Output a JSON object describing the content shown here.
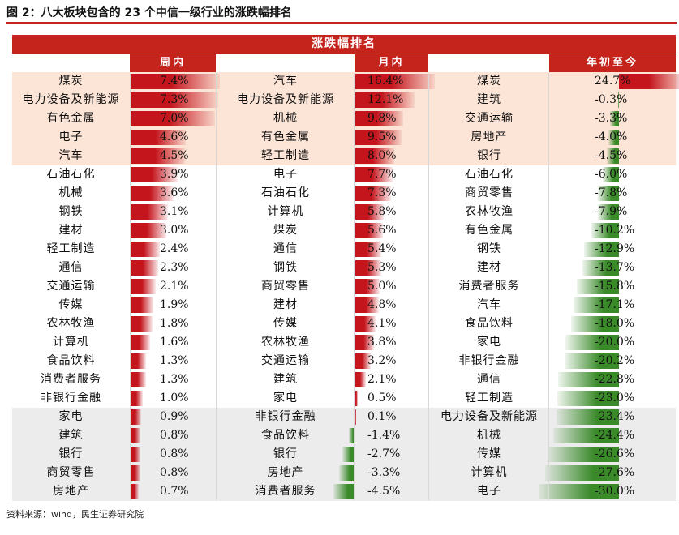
{
  "figure_title": "图 2：八大板块包含的 23 个中信一级行业的涨跌幅排名",
  "banner_title": "涨跌幅排名",
  "columns": {
    "week": "周内",
    "month": "月内",
    "ytd": "年初至今"
  },
  "colors": {
    "header_red": "#c4241c",
    "top_band": "#fce4d6",
    "bottom_band": "#ececec",
    "positive_bar": "#c4141c",
    "negative_bar": "#3a8a2a"
  },
  "band_rows": {
    "top_end": 5,
    "bottom_start": 18
  },
  "rows": [
    {
      "week_name": "煤炭",
      "week_val": "7.4%",
      "week_num": 7.4,
      "month_name": "汽车",
      "month_val": "16.4%",
      "month_num": 16.4,
      "ytd_name": "煤炭",
      "ytd_val": "24.7%",
      "ytd_num": 24.7
    },
    {
      "week_name": "电力设备及新能源",
      "week_val": "7.3%",
      "week_num": 7.3,
      "month_name": "电力设备及新能源",
      "month_val": "12.1%",
      "month_num": 12.1,
      "ytd_name": "建筑",
      "ytd_val": "-0.3%",
      "ytd_num": -0.3
    },
    {
      "week_name": "有色金属",
      "week_val": "7.0%",
      "week_num": 7.0,
      "month_name": "机械",
      "month_val": "9.8%",
      "month_num": 9.8,
      "ytd_name": "交通运输",
      "ytd_val": "-3.3%",
      "ytd_num": -3.3
    },
    {
      "week_name": "电子",
      "week_val": "4.6%",
      "week_num": 4.6,
      "month_name": "有色金属",
      "month_val": "9.5%",
      "month_num": 9.5,
      "ytd_name": "房地产",
      "ytd_val": "-4.0%",
      "ytd_num": -4.0
    },
    {
      "week_name": "汽车",
      "week_val": "4.5%",
      "week_num": 4.5,
      "month_name": "轻工制造",
      "month_val": "8.0%",
      "month_num": 8.0,
      "ytd_name": "银行",
      "ytd_val": "-4.5%",
      "ytd_num": -4.5
    },
    {
      "week_name": "石油石化",
      "week_val": "3.9%",
      "week_num": 3.9,
      "month_name": "电子",
      "month_val": "7.7%",
      "month_num": 7.7,
      "ytd_name": "石油石化",
      "ytd_val": "-6.0%",
      "ytd_num": -6.0
    },
    {
      "week_name": "机械",
      "week_val": "3.6%",
      "week_num": 3.6,
      "month_name": "石油石化",
      "month_val": "7.3%",
      "month_num": 7.3,
      "ytd_name": "商贸零售",
      "ytd_val": "-7.8%",
      "ytd_num": -7.8
    },
    {
      "week_name": "钢铁",
      "week_val": "3.1%",
      "week_num": 3.1,
      "month_name": "计算机",
      "month_val": "5.8%",
      "month_num": 5.8,
      "ytd_name": "农林牧渔",
      "ytd_val": "-7.9%",
      "ytd_num": -7.9
    },
    {
      "week_name": "建材",
      "week_val": "3.0%",
      "week_num": 3.0,
      "month_name": "煤炭",
      "month_val": "5.6%",
      "month_num": 5.6,
      "ytd_name": "有色金属",
      "ytd_val": "-10.2%",
      "ytd_num": -10.2
    },
    {
      "week_name": "轻工制造",
      "week_val": "2.4%",
      "week_num": 2.4,
      "month_name": "通信",
      "month_val": "5.4%",
      "month_num": 5.4,
      "ytd_name": "钢铁",
      "ytd_val": "-12.9%",
      "ytd_num": -12.9
    },
    {
      "week_name": "通信",
      "week_val": "2.3%",
      "week_num": 2.3,
      "month_name": "钢铁",
      "month_val": "5.3%",
      "month_num": 5.3,
      "ytd_name": "建材",
      "ytd_val": "-13.7%",
      "ytd_num": -13.7
    },
    {
      "week_name": "交通运输",
      "week_val": "2.1%",
      "week_num": 2.1,
      "month_name": "商贸零售",
      "month_val": "5.0%",
      "month_num": 5.0,
      "ytd_name": "消费者服务",
      "ytd_val": "-15.8%",
      "ytd_num": -15.8
    },
    {
      "week_name": "传媒",
      "week_val": "1.9%",
      "week_num": 1.9,
      "month_name": "建材",
      "month_val": "4.8%",
      "month_num": 4.8,
      "ytd_name": "汽车",
      "ytd_val": "-17.1%",
      "ytd_num": -17.1
    },
    {
      "week_name": "农林牧渔",
      "week_val": "1.8%",
      "week_num": 1.8,
      "month_name": "传媒",
      "month_val": "4.1%",
      "month_num": 4.1,
      "ytd_name": "食品饮料",
      "ytd_val": "-18.0%",
      "ytd_num": -18.0
    },
    {
      "week_name": "计算机",
      "week_val": "1.6%",
      "week_num": 1.6,
      "month_name": "农林牧渔",
      "month_val": "3.8%",
      "month_num": 3.8,
      "ytd_name": "家电",
      "ytd_val": "-20.0%",
      "ytd_num": -20.0
    },
    {
      "week_name": "食品饮料",
      "week_val": "1.3%",
      "week_num": 1.3,
      "month_name": "交通运输",
      "month_val": "3.2%",
      "month_num": 3.2,
      "ytd_name": "非银行金融",
      "ytd_val": "-20.2%",
      "ytd_num": -20.2
    },
    {
      "week_name": "消费者服务",
      "week_val": "1.3%",
      "week_num": 1.3,
      "month_name": "建筑",
      "month_val": "2.1%",
      "month_num": 2.1,
      "ytd_name": "通信",
      "ytd_val": "-22.8%",
      "ytd_num": -22.8
    },
    {
      "week_name": "非银行金融",
      "week_val": "1.0%",
      "week_num": 1.0,
      "month_name": "家电",
      "month_val": "0.5%",
      "month_num": 0.5,
      "ytd_name": "轻工制造",
      "ytd_val": "-23.0%",
      "ytd_num": -23.0
    },
    {
      "week_name": "家电",
      "week_val": "0.9%",
      "week_num": 0.9,
      "month_name": "非银行金融",
      "month_val": "0.1%",
      "month_num": 0.1,
      "ytd_name": "电力设备及新能源",
      "ytd_val": "-23.4%",
      "ytd_num": -23.4
    },
    {
      "week_name": "建筑",
      "week_val": "0.8%",
      "week_num": 0.8,
      "month_name": "食品饮料",
      "month_val": "-1.4%",
      "month_num": -1.4,
      "ytd_name": "机械",
      "ytd_val": "-24.4%",
      "ytd_num": -24.4
    },
    {
      "week_name": "银行",
      "week_val": "0.8%",
      "week_num": 0.8,
      "month_name": "银行",
      "month_val": "-2.7%",
      "month_num": -2.7,
      "ytd_name": "传媒",
      "ytd_val": "-26.6%",
      "ytd_num": -26.6
    },
    {
      "week_name": "商贸零售",
      "week_val": "0.8%",
      "week_num": 0.8,
      "month_name": "房地产",
      "month_val": "-3.3%",
      "month_num": -3.3,
      "ytd_name": "计算机",
      "ytd_val": "-27.6%",
      "ytd_num": -27.6
    },
    {
      "week_name": "房地产",
      "week_val": "0.7%",
      "week_num": 0.7,
      "month_name": "消费者服务",
      "month_val": "-4.5%",
      "month_num": -4.5,
      "ytd_name": "电子",
      "ytd_val": "-30.0%",
      "ytd_num": -30.0
    }
  ],
  "source": "资料来源：wind，民生证券研究院"
}
